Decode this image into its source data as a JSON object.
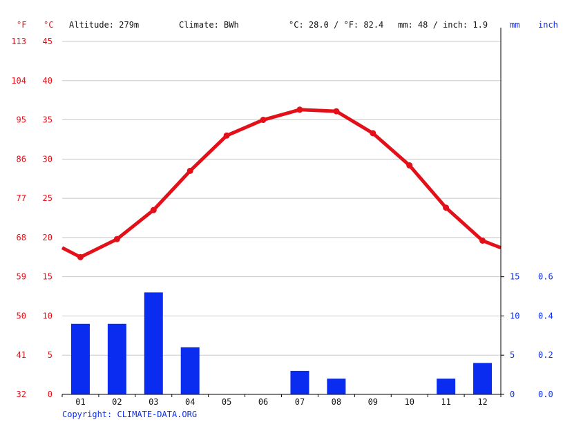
{
  "header": {
    "unit_f": "°F",
    "unit_c": "°C",
    "altitude": "Altitude: 279m",
    "climate": "Climate: BWh",
    "avg_temp": "°C: 28.0 / °F: 82.4",
    "avg_precip": "mm: 48 / inch: 1.9",
    "unit_mm": "mm",
    "unit_inch": "inch"
  },
  "copyright": "Copyright: CLIMATE-DATA.ORG",
  "colors": {
    "temperature": "#e3101a",
    "precipitation": "#0a2cf0",
    "grid": "#c8c8c8",
    "text": "#111111"
  },
  "chart_data": {
    "type": "bar+line",
    "categories": [
      "01",
      "02",
      "03",
      "04",
      "05",
      "06",
      "07",
      "08",
      "09",
      "10",
      "11",
      "12"
    ],
    "series": [
      {
        "kind": "line",
        "unit": "°C",
        "values": [
          17.5,
          19.8,
          23.5,
          28.5,
          33.0,
          35.0,
          36.3,
          36.1,
          33.3,
          29.2,
          23.8,
          19.6
        ],
        "edge_left": 18.7,
        "edge_right": 18.7
      },
      {
        "kind": "bar",
        "unit": "mm",
        "values": [
          9,
          9,
          13,
          6,
          0,
          0,
          3,
          2,
          0,
          0,
          2,
          4
        ]
      }
    ],
    "left_axis_c": {
      "ticks": [
        "0",
        "5",
        "10",
        "15",
        "20",
        "25",
        "30",
        "35",
        "40",
        "45"
      ],
      "range": [
        0,
        45
      ]
    },
    "left_axis_f": {
      "ticks": [
        "32",
        "41",
        "50",
        "59",
        "68",
        "77",
        "86",
        "95",
        "104",
        "113"
      ]
    },
    "right_axis_mm": {
      "ticks": [
        "0",
        "5",
        "10",
        "15"
      ],
      "range": [
        0,
        15
      ]
    },
    "right_axis_inch": {
      "ticks": [
        "0.0",
        "0.2",
        "0.4",
        "0.6"
      ]
    },
    "grid": true
  }
}
